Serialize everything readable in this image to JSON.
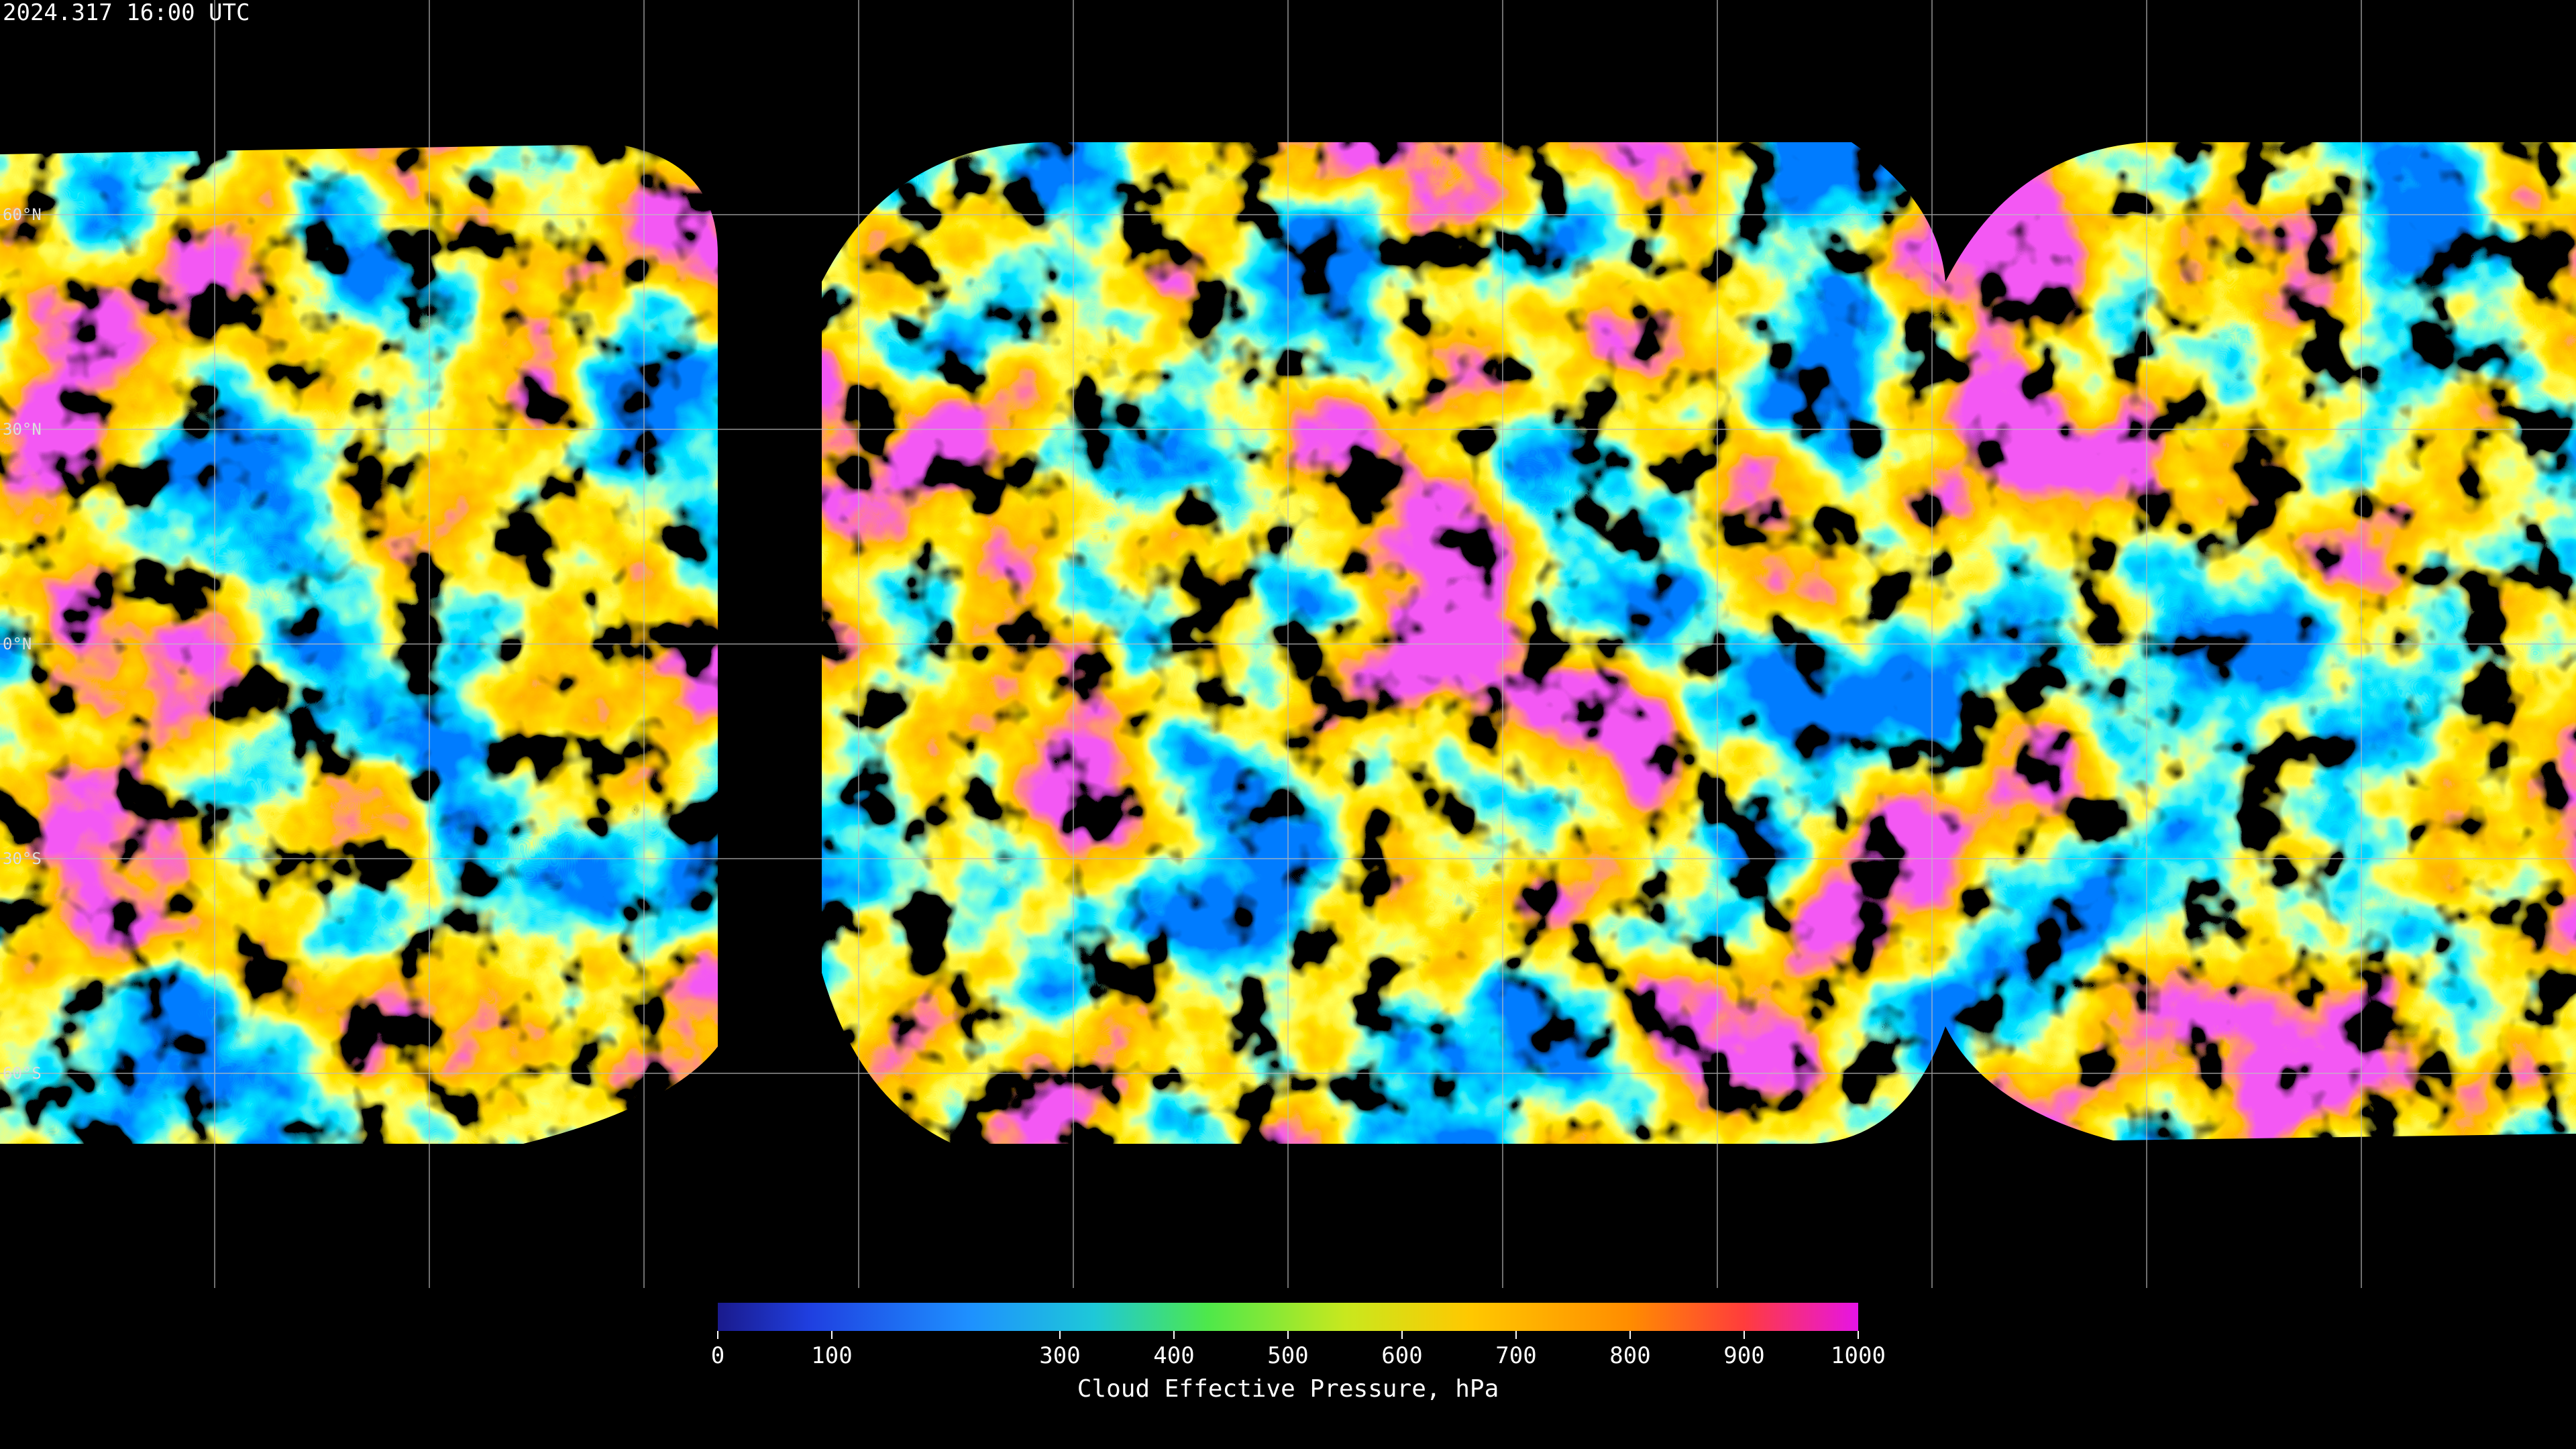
{
  "title": "2024.317 16:00 UTC",
  "latitude_labels": [
    "60°N",
    "30°N",
    "0°N",
    "30°S",
    "60°S"
  ],
  "colorbar": {
    "label": "Cloud Effective Pressure, hPa",
    "ticks": [
      0,
      100,
      300,
      400,
      500,
      600,
      700,
      800,
      900,
      1000
    ]
  }
}
